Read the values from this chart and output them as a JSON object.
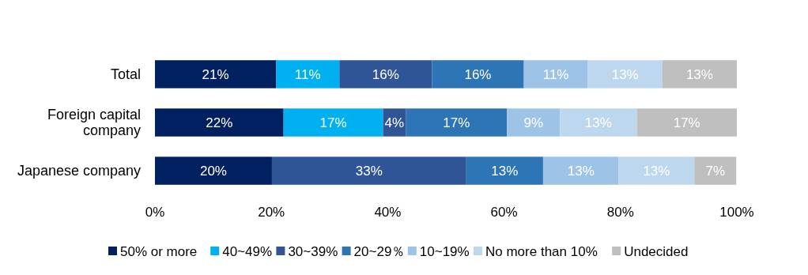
{
  "chart_data": {
    "type": "bar",
    "orientation": "horizontal",
    "stacked": true,
    "categories": [
      "Total",
      "Foreign capital company",
      "Japanese company"
    ],
    "series": [
      {
        "name": "50% or more",
        "color": "#002060",
        "values": [
          20.8,
          22.1,
          20.1
        ],
        "value_labels": [
          "21%",
          "22%",
          "20%"
        ]
      },
      {
        "name": "40~49%",
        "color": "#00b0f0",
        "values": [
          10.9,
          17.1,
          0
        ],
        "value_labels": [
          "11%",
          "17%",
          null
        ]
      },
      {
        "name": "30~39%",
        "color": "#2f5597",
        "values": [
          15.9,
          3.9,
          33.4
        ],
        "value_labels": [
          "16%",
          "4%",
          "33%"
        ]
      },
      {
        "name": "20~29％",
        "color": "#2e75b6",
        "values": [
          15.8,
          17.4,
          13.2
        ],
        "value_labels": [
          "16%",
          "17%",
          "13%"
        ]
      },
      {
        "name": "10~19%",
        "color": "#9dc3e6",
        "values": [
          11.0,
          9.1,
          13.0
        ],
        "value_labels": [
          "11%",
          "9%",
          "13%"
        ]
      },
      {
        "name": "No more than 10%",
        "color": "#bdd7ee",
        "values": [
          12.8,
          13.2,
          13.0
        ],
        "value_labels": [
          "13%",
          "13%",
          "13%"
        ]
      },
      {
        "name": "Undecided",
        "color": "#bfbfbf",
        "values": [
          12.8,
          17.2,
          7.2
        ],
        "value_labels": [
          "13%",
          "17%",
          "7%"
        ]
      }
    ],
    "xlim": [
      0,
      100
    ],
    "xticks": [
      {
        "value": 0,
        "label": "0%"
      },
      {
        "value": 20,
        "label": "20%"
      },
      {
        "value": 40,
        "label": "40%"
      },
      {
        "value": 60,
        "label": "60%"
      },
      {
        "value": 80,
        "label": "80%"
      },
      {
        "value": 100,
        "label": "100%"
      }
    ],
    "grid": false,
    "legend": "bottom"
  }
}
